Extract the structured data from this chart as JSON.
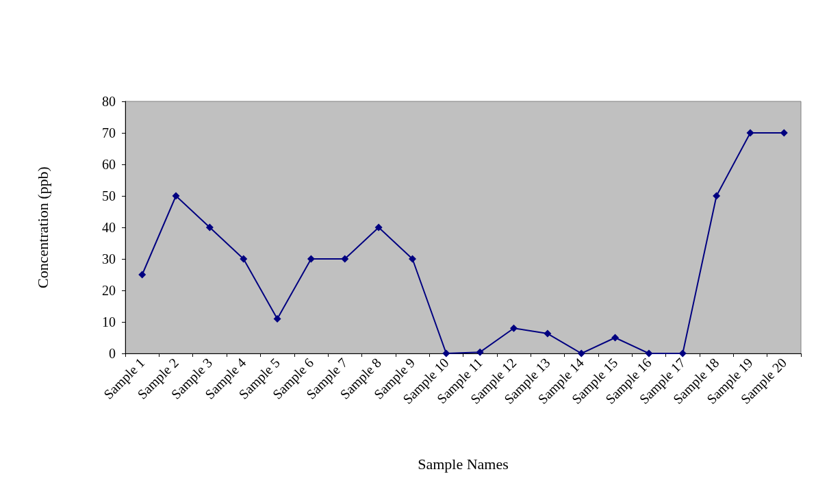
{
  "chart_data": {
    "type": "line",
    "xlabel": "Sample Names",
    "ylabel": "Concentration (ppb)",
    "categories": [
      "Sample 1",
      "Sample 2",
      "Sample 3",
      "Sample 4",
      "Sample 5",
      "Sample 6",
      "Sample 7",
      "Sample 8",
      "Sample 9",
      "Sample 10",
      "Sample 11",
      "Sample 12",
      "Sample 13",
      "Sample 14",
      "Sample 15",
      "Sample 16",
      "Sample 17",
      "Sample 18",
      "Sample 19",
      "Sample 20"
    ],
    "series": [
      {
        "color": "#000080",
        "values": [
          25,
          50,
          40,
          30,
          11,
          30,
          30,
          40,
          30,
          0,
          0.4,
          8,
          6.3,
          0,
          5,
          0,
          0,
          50,
          70,
          70
        ]
      }
    ],
    "ylim": [
      0,
      80
    ],
    "yticks": [
      0,
      10,
      20,
      30,
      40,
      50,
      60,
      70,
      80
    ],
    "grid": false,
    "marker": "diamond",
    "line_style": "solid"
  }
}
